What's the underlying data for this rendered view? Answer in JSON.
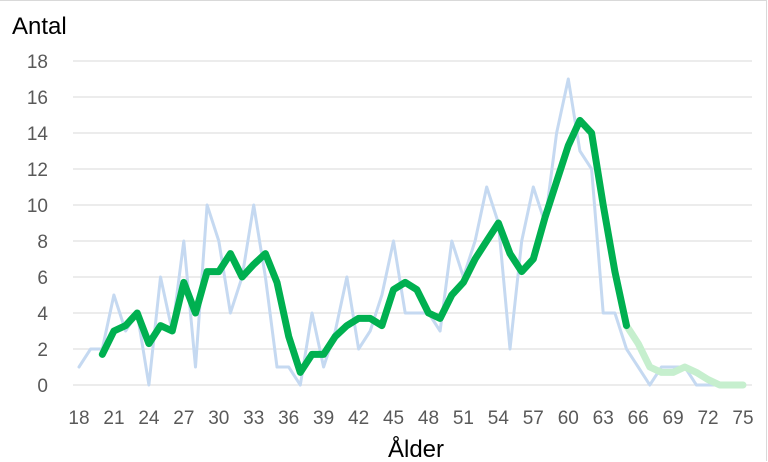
{
  "chart_data": {
    "type": "line",
    "ylabel": "Antal",
    "xlabel": "Ålder",
    "ylim": [
      0,
      18
    ],
    "yticks": [
      "0",
      "2",
      "4",
      "6",
      "8",
      "10",
      "12",
      "14",
      "16",
      "18"
    ],
    "xlim": [
      18,
      75
    ],
    "xticks": [
      "18",
      "21",
      "24",
      "27",
      "30",
      "33",
      "36",
      "39",
      "42",
      "45",
      "48",
      "51",
      "54",
      "57",
      "60",
      "63",
      "66",
      "69",
      "72",
      "75"
    ],
    "grid": true,
    "legend": "none",
    "series": [
      {
        "color": "#c5d9f1",
        "x": [
          18,
          19,
          20,
          21,
          22,
          23,
          24,
          25,
          26,
          27,
          28,
          29,
          30,
          31,
          32,
          33,
          34,
          35,
          36,
          37,
          38,
          39,
          40,
          41,
          42,
          43,
          44,
          45,
          46,
          47,
          48,
          49,
          50,
          51,
          52,
          53,
          54,
          55,
          56,
          57,
          58,
          59,
          60,
          61,
          62,
          63,
          64,
          65,
          66,
          67,
          68,
          69,
          70,
          71,
          72,
          73,
          74,
          75
        ],
        "values": [
          1,
          2,
          2,
          5,
          3,
          4,
          0,
          6,
          3,
          8,
          1,
          10,
          8,
          4,
          6,
          10,
          6,
          1,
          1,
          0,
          4,
          1,
          3,
          6,
          2,
          3,
          5,
          8,
          4,
          4,
          4,
          3,
          8,
          6,
          8,
          11,
          9,
          2,
          8,
          11,
          9,
          14,
          17,
          13,
          12,
          4,
          4,
          2,
          1,
          0,
          1,
          1,
          1,
          0,
          0,
          0,
          0,
          0
        ]
      },
      {
        "color": "#00b050",
        "fade_color": "#c6efce",
        "fade_from_x": 65,
        "x": [
          20,
          21,
          22,
          23,
          24,
          25,
          26,
          27,
          28,
          29,
          30,
          31,
          32,
          33,
          34,
          35,
          36,
          37,
          38,
          39,
          40,
          41,
          42,
          43,
          44,
          45,
          46,
          47,
          48,
          49,
          50,
          51,
          52,
          53,
          54,
          55,
          56,
          57,
          58,
          59,
          60,
          61,
          62,
          63,
          64,
          65,
          66,
          67,
          68,
          69,
          70,
          71,
          72,
          73,
          74,
          75
        ],
        "values": [
          1.7,
          3.0,
          3.3,
          4.0,
          2.3,
          3.3,
          3.0,
          5.7,
          4.0,
          6.3,
          6.3,
          7.3,
          6.0,
          6.7,
          7.3,
          5.7,
          2.7,
          0.7,
          1.7,
          1.7,
          2.7,
          3.3,
          3.7,
          3.7,
          3.3,
          5.3,
          5.7,
          5.3,
          4.0,
          3.7,
          5.0,
          5.7,
          7.0,
          8.0,
          9.0,
          7.3,
          6.3,
          7.0,
          9.3,
          11.3,
          13.3,
          14.7,
          14.0,
          10.0,
          6.3,
          3.3,
          2.3,
          1.0,
          0.7,
          0.7,
          1.0,
          0.7,
          0.3,
          0.0,
          0.0,
          0.0
        ]
      }
    ]
  }
}
